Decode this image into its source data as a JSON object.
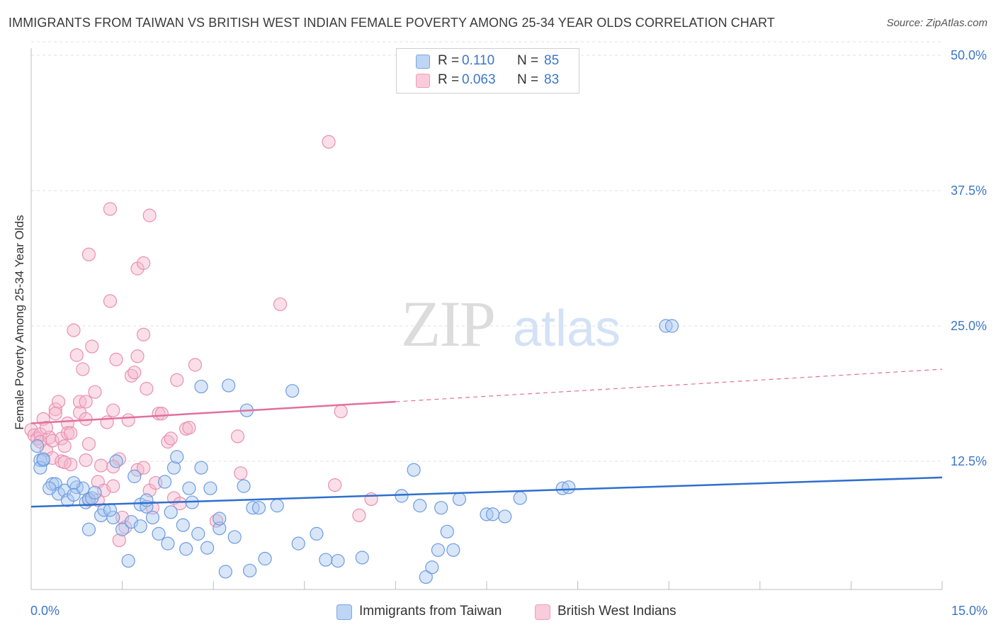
{
  "header": {
    "title": "IMMIGRANTS FROM TAIWAN VS BRITISH WEST INDIAN FEMALE POVERTY AMONG 25-34 YEAR OLDS CORRELATION CHART",
    "source": "Source: ZipAtlas.com"
  },
  "watermark": {
    "zip": "ZIP",
    "atlas": "atlas"
  },
  "legend": {
    "rows": [
      {
        "r_label": "R =",
        "r_value": "0.110",
        "n_label": "N =",
        "n_value": "85",
        "color": "#a9c7f0"
      },
      {
        "r_label": "R =",
        "r_value": "0.063",
        "n_label": "N =",
        "n_value": "83",
        "color": "#f5b8cd"
      }
    ]
  },
  "bottom_legend": [
    {
      "label": "Immigrants from Taiwan",
      "color": "#a9c7f0"
    },
    {
      "label": "British West Indians",
      "color": "#f5b8cd"
    }
  ],
  "chart_data": {
    "type": "scatter",
    "ylabel": "Female Poverty Among 25-34 Year Olds",
    "xlim": [
      0,
      15
    ],
    "ylim": [
      0,
      50
    ],
    "x_tick_labels": [
      "0.0%",
      "15.0%"
    ],
    "y_ticks": [
      12.5,
      25,
      37.5,
      50
    ],
    "y_tick_labels": [
      "12.5%",
      "25.0%",
      "37.5%",
      "50.0%"
    ],
    "grid": true,
    "legend_position": "top-center",
    "series": [
      {
        "name": "Immigrants from Taiwan",
        "color": "#a9c7f0",
        "stroke": "#6d9be0",
        "trend": {
          "x0": 0,
          "y0": 8.3,
          "x1": 15,
          "y1": 11.0,
          "solid_until": 15,
          "color": "#2f6fcd"
        },
        "points": [
          [
            0.1,
            13.9
          ],
          [
            0.15,
            12.6
          ],
          [
            0.2,
            12.6
          ],
          [
            0.15,
            11.9
          ],
          [
            0.35,
            10.4
          ],
          [
            0.4,
            10.4
          ],
          [
            0.45,
            9.5
          ],
          [
            0.55,
            9.8
          ],
          [
            0.6,
            8.9
          ],
          [
            0.75,
            10.1
          ],
          [
            0.85,
            10.0
          ],
          [
            0.9,
            8.7
          ],
          [
            0.95,
            9.0
          ],
          [
            0.7,
            10.5
          ],
          [
            0.7,
            9.4
          ],
          [
            1.0,
            9.1
          ],
          [
            1.05,
            9.6
          ],
          [
            1.15,
            7.5
          ],
          [
            1.2,
            8.0
          ],
          [
            0.95,
            6.2
          ],
          [
            1.35,
            7.3
          ],
          [
            1.3,
            8.0
          ],
          [
            1.5,
            6.2
          ],
          [
            1.6,
            3.3
          ],
          [
            1.65,
            6.9
          ],
          [
            1.4,
            12.5
          ],
          [
            1.7,
            11.1
          ],
          [
            1.8,
            8.5
          ],
          [
            1.9,
            8.3
          ],
          [
            1.9,
            8.9
          ],
          [
            2.0,
            7.3
          ],
          [
            1.8,
            6.5
          ],
          [
            2.1,
            5.8
          ],
          [
            2.2,
            10.6
          ],
          [
            2.25,
            4.9
          ],
          [
            2.3,
            7.8
          ],
          [
            2.35,
            11.9
          ],
          [
            2.4,
            12.9
          ],
          [
            2.5,
            6.6
          ],
          [
            2.55,
            4.4
          ],
          [
            2.6,
            10.0
          ],
          [
            2.65,
            8.7
          ],
          [
            2.75,
            5.8
          ],
          [
            2.8,
            19.4
          ],
          [
            2.8,
            11.9
          ],
          [
            2.9,
            4.5
          ],
          [
            2.95,
            10.0
          ],
          [
            3.1,
            6.3
          ],
          [
            3.1,
            7.2
          ],
          [
            3.2,
            2.3
          ],
          [
            3.25,
            19.5
          ],
          [
            3.35,
            5.5
          ],
          [
            3.5,
            10.2
          ],
          [
            3.55,
            17.2
          ],
          [
            3.6,
            2.4
          ],
          [
            3.65,
            8.2
          ],
          [
            3.75,
            8.2
          ],
          [
            3.85,
            3.5
          ],
          [
            4.05,
            8.4
          ],
          [
            4.3,
            19.0
          ],
          [
            4.4,
            4.9
          ],
          [
            4.7,
            5.8
          ],
          [
            4.85,
            3.4
          ],
          [
            5.05,
            3.3
          ],
          [
            5.45,
            3.6
          ],
          [
            6.1,
            9.3
          ],
          [
            6.3,
            11.7
          ],
          [
            6.4,
            8.4
          ],
          [
            6.5,
            1.8
          ],
          [
            6.6,
            2.7
          ],
          [
            6.7,
            4.3
          ],
          [
            6.75,
            8.2
          ],
          [
            6.85,
            6.0
          ],
          [
            6.95,
            4.3
          ],
          [
            7.05,
            9.0
          ],
          [
            7.5,
            7.6
          ],
          [
            7.6,
            7.6
          ],
          [
            7.8,
            7.4
          ],
          [
            8.05,
            9.1
          ],
          [
            8.75,
            10.0
          ],
          [
            8.85,
            10.1
          ],
          [
            10.45,
            25.0
          ],
          [
            10.55,
            25.0
          ],
          [
            0.2,
            12.7
          ],
          [
            0.3,
            10.0
          ]
        ]
      },
      {
        "name": "British West Indians",
        "color": "#f5b8cd",
        "stroke": "#ea8fb0",
        "trend": {
          "x0": 0,
          "y0": 16.0,
          "x1": 15,
          "y1": 21.0,
          "solid_until": 6,
          "color": "#e2709a"
        },
        "points": [
          [
            0.0,
            15.4
          ],
          [
            0.05,
            14.9
          ],
          [
            0.1,
            14.6
          ],
          [
            0.15,
            15.0
          ],
          [
            0.15,
            14.3
          ],
          [
            0.2,
            16.4
          ],
          [
            0.25,
            13.5
          ],
          [
            0.3,
            14.7
          ],
          [
            0.35,
            12.8
          ],
          [
            0.35,
            14.4
          ],
          [
            0.4,
            17.3
          ],
          [
            0.45,
            18.0
          ],
          [
            0.5,
            12.5
          ],
          [
            0.5,
            14.6
          ],
          [
            0.55,
            13.9
          ],
          [
            0.6,
            16.0
          ],
          [
            0.6,
            15.1
          ],
          [
            0.65,
            12.2
          ],
          [
            0.65,
            15.1
          ],
          [
            0.7,
            24.6
          ],
          [
            0.75,
            22.3
          ],
          [
            0.8,
            17.0
          ],
          [
            0.8,
            18.0
          ],
          [
            0.85,
            21.0
          ],
          [
            0.9,
            16.4
          ],
          [
            0.9,
            18.0
          ],
          [
            0.95,
            14.1
          ],
          [
            0.95,
            8.9
          ],
          [
            1.0,
            23.1
          ],
          [
            1.05,
            18.9
          ],
          [
            1.1,
            10.6
          ],
          [
            1.15,
            12.1
          ],
          [
            1.2,
            9.8
          ],
          [
            1.25,
            16.1
          ],
          [
            1.3,
            27.3
          ],
          [
            1.35,
            17.2
          ],
          [
            1.35,
            10.2
          ],
          [
            1.4,
            21.9
          ],
          [
            1.45,
            5.2
          ],
          [
            1.45,
            12.7
          ],
          [
            1.5,
            7.3
          ],
          [
            1.55,
            6.4
          ],
          [
            1.6,
            16.3
          ],
          [
            1.65,
            20.4
          ],
          [
            1.7,
            20.7
          ],
          [
            1.75,
            22.2
          ],
          [
            1.75,
            30.3
          ],
          [
            1.85,
            24.2
          ],
          [
            1.85,
            30.8
          ],
          [
            1.9,
            19.2
          ],
          [
            1.95,
            9.8
          ],
          [
            2.0,
            8.2
          ],
          [
            2.05,
            10.5
          ],
          [
            2.1,
            16.9
          ],
          [
            2.15,
            16.9
          ],
          [
            2.25,
            14.3
          ],
          [
            2.3,
            14.6
          ],
          [
            2.35,
            9.1
          ],
          [
            2.4,
            20.0
          ],
          [
            2.45,
            8.6
          ],
          [
            2.55,
            15.5
          ],
          [
            2.6,
            15.6
          ],
          [
            2.7,
            21.4
          ],
          [
            3.05,
            7.0
          ],
          [
            3.4,
            14.8
          ],
          [
            3.45,
            11.4
          ],
          [
            4.1,
            27.0
          ],
          [
            4.9,
            42.0
          ],
          [
            5.0,
            10.3
          ],
          [
            5.1,
            17.1
          ],
          [
            5.4,
            7.5
          ],
          [
            5.6,
            9.0
          ],
          [
            1.3,
            35.8
          ],
          [
            1.95,
            35.2
          ],
          [
            0.95,
            31.6
          ],
          [
            1.35,
            12.0
          ],
          [
            0.4,
            16.9
          ],
          [
            0.55,
            12.4
          ],
          [
            0.9,
            12.6
          ],
          [
            1.1,
            8.9
          ],
          [
            1.75,
            11.7
          ],
          [
            1.85,
            11.9
          ],
          [
            0.25,
            15.6
          ]
        ]
      }
    ]
  }
}
